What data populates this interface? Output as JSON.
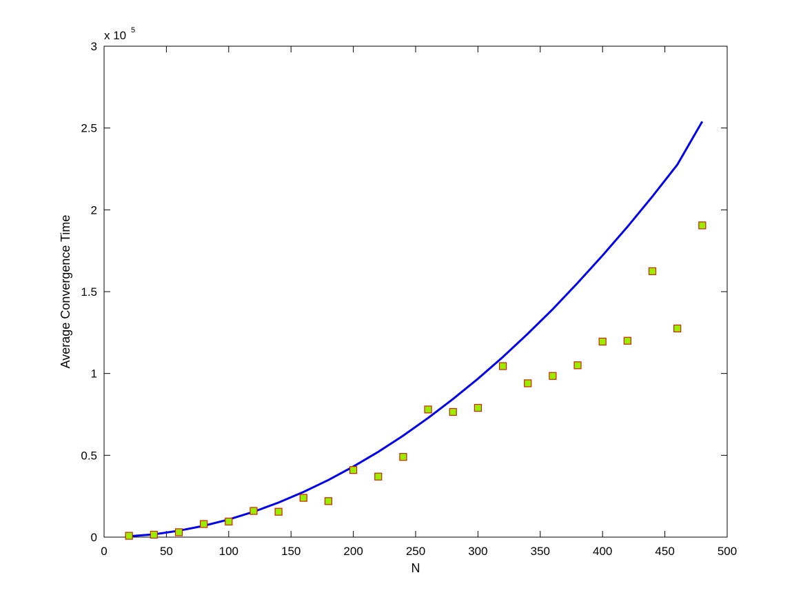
{
  "chart_data": {
    "type": "scatter",
    "xlabel": "N",
    "ylabel": "Average Convergence Time",
    "xlim": [
      0,
      500
    ],
    "ylim": [
      0,
      300000
    ],
    "y_multiplier_label": "x 10",
    "y_multiplier_exponent": "5",
    "x_ticks": [
      0,
      50,
      100,
      150,
      200,
      250,
      300,
      350,
      400,
      450,
      500
    ],
    "x_tick_labels": [
      "0",
      "50",
      "100",
      "150",
      "200",
      "250",
      "300",
      "350",
      "400",
      "450",
      "500"
    ],
    "y_ticks": [
      0,
      50000,
      100000,
      150000,
      200000,
      250000,
      300000
    ],
    "y_tick_labels": [
      "0",
      "0.5",
      "1",
      "1.5",
      "2",
      "2.5",
      "3"
    ],
    "grid": false,
    "series": [
      {
        "kind": "scatter",
        "marker": "square",
        "fill_color": "#99ee00",
        "edge_color": "#cc2200",
        "x": [
          20,
          40,
          60,
          80,
          100,
          120,
          140,
          160,
          180,
          200,
          220,
          240,
          260,
          280,
          300,
          320,
          340,
          360,
          380,
          400,
          420,
          440,
          460,
          480
        ],
        "y": [
          800,
          1500,
          3000,
          8000,
          9500,
          16000,
          15500,
          24000,
          22000,
          41000,
          37000,
          49000,
          78000,
          76500,
          79000,
          104500,
          94000,
          98500,
          105000,
          119500,
          120000,
          162500,
          127500,
          190500
        ]
      },
      {
        "kind": "line",
        "color": "#0000ee",
        "x": [
          20,
          40,
          60,
          80,
          100,
          120,
          140,
          160,
          180,
          200,
          220,
          240,
          260,
          280,
          300,
          320,
          340,
          360,
          380,
          400,
          420,
          440,
          460,
          480
        ],
        "y": [
          500,
          1700,
          3900,
          6900,
          10800,
          15500,
          21100,
          27600,
          34900,
          43100,
          52100,
          62000,
          72800,
          84400,
          96800,
          110100,
          124300,
          139300,
          155300,
          172100,
          189700,
          208200,
          227600,
          254000
        ]
      }
    ]
  }
}
